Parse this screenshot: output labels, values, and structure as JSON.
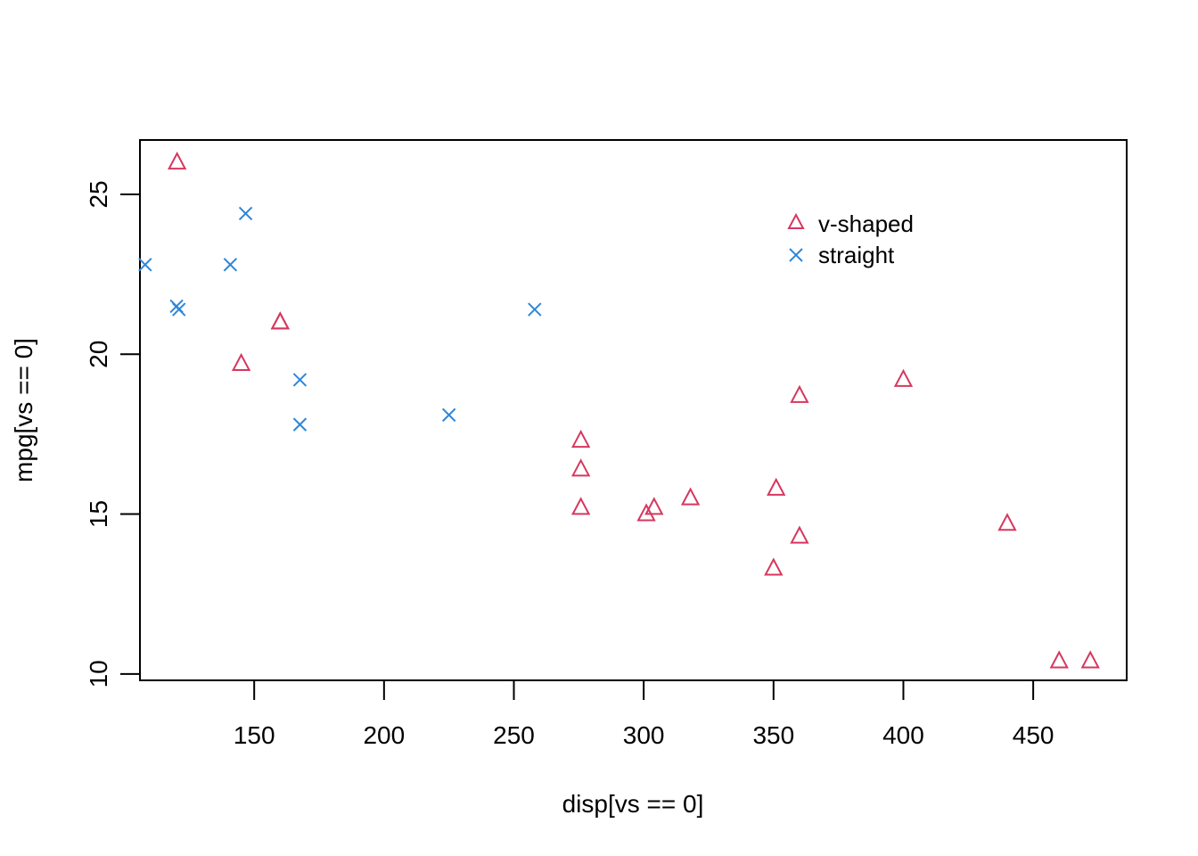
{
  "chart_data": {
    "type": "scatter",
    "title": "",
    "xlabel": "disp[vs == 0]",
    "ylabel": "mpg[vs == 0]",
    "xlim": [
      106,
      486
    ],
    "ylim": [
      9.8,
      26.7
    ],
    "x_ticks": [
      150,
      200,
      250,
      300,
      350,
      400,
      450
    ],
    "y_ticks": [
      10,
      15,
      20,
      25
    ],
    "grid": false,
    "legend": {
      "position": "top-right",
      "entries": [
        {
          "label": "v-shaped",
          "marker": "triangle",
          "color": "#D6375F"
        },
        {
          "label": "straight",
          "marker": "x",
          "color": "#2F86D7"
        }
      ]
    },
    "series": [
      {
        "name": "v-shaped",
        "marker": "triangle",
        "color": "#D6375F",
        "points": [
          [
            120.3,
            26.0
          ],
          [
            160,
            21.0
          ],
          [
            160,
            21.0
          ],
          [
            145,
            19.7
          ],
          [
            360,
            18.7
          ],
          [
            400,
            19.2
          ],
          [
            275.8,
            17.3
          ],
          [
            275.8,
            16.4
          ],
          [
            275.8,
            15.2
          ],
          [
            301,
            15.0
          ],
          [
            304,
            15.2
          ],
          [
            318,
            15.5
          ],
          [
            351,
            15.8
          ],
          [
            360,
            14.3
          ],
          [
            350,
            13.3
          ],
          [
            440,
            14.7
          ],
          [
            460,
            10.4
          ],
          [
            472,
            10.4
          ]
        ]
      },
      {
        "name": "straight",
        "marker": "x",
        "color": "#2F86D7",
        "points": [
          [
            108,
            22.8
          ],
          [
            146.7,
            24.4
          ],
          [
            140.8,
            22.8
          ],
          [
            120.1,
            21.5
          ],
          [
            121,
            21.4
          ],
          [
            258,
            21.4
          ],
          [
            167.6,
            19.2
          ],
          [
            167.6,
            17.8
          ],
          [
            225,
            18.1
          ]
        ]
      }
    ]
  }
}
